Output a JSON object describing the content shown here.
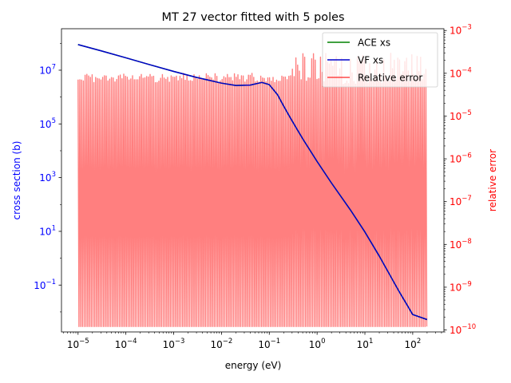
{
  "chart_data": {
    "type": "line",
    "title": "MT 27 vector fitted with 5 poles",
    "xlabel": "energy (eV)",
    "ylabel_left": "cross section (b)",
    "ylabel_right": "relative error",
    "x_scale": "log",
    "y_left_scale": "log",
    "y_right_scale": "log",
    "xlim": [
      4.5e-06,
      450
    ],
    "ylim_left": [
      0.0018,
      350000000.0
    ],
    "ylim_right": [
      9e-11,
      0.0011
    ],
    "grid": false,
    "legend_position": "top-right",
    "x_ticks": [
      {
        "value": 1e-05,
        "base": "10",
        "exp": "−5"
      },
      {
        "value": 0.0001,
        "base": "10",
        "exp": "−4"
      },
      {
        "value": 0.001,
        "base": "10",
        "exp": "−3"
      },
      {
        "value": 0.01,
        "base": "10",
        "exp": "−2"
      },
      {
        "value": 0.1,
        "base": "10",
        "exp": "−1"
      },
      {
        "value": 1,
        "base": "10",
        "exp": "0"
      },
      {
        "value": 10,
        "base": "10",
        "exp": "1"
      },
      {
        "value": 100,
        "base": "10",
        "exp": "2"
      }
    ],
    "y_left_ticks": [
      {
        "value": 0.1,
        "base": "10",
        "exp": "−1"
      },
      {
        "value": 10,
        "base": "10",
        "exp": "1"
      },
      {
        "value": 1000,
        "base": "10",
        "exp": "3"
      },
      {
        "value": 100000,
        "base": "10",
        "exp": "5"
      },
      {
        "value": 10000000,
        "base": "10",
        "exp": "7"
      }
    ],
    "y_right_ticks": [
      {
        "value": 1e-10,
        "base": "10",
        "exp": "−10"
      },
      {
        "value": 1e-09,
        "base": "10",
        "exp": "−9"
      },
      {
        "value": 1e-08,
        "base": "10",
        "exp": "−8"
      },
      {
        "value": 1e-07,
        "base": "10",
        "exp": "−7"
      },
      {
        "value": 1e-06,
        "base": "10",
        "exp": "−6"
      },
      {
        "value": 1e-05,
        "base": "10",
        "exp": "−5"
      },
      {
        "value": 0.0001,
        "base": "10",
        "exp": "−4"
      },
      {
        "value": 0.001,
        "base": "10",
        "exp": "−3"
      }
    ],
    "series": [
      {
        "name": "ACE xs",
        "axis": "left",
        "color": "#008000",
        "x": [
          1e-05,
          3e-05,
          0.0001,
          0.0003,
          0.001,
          0.003,
          0.01,
          0.02,
          0.04,
          0.07,
          0.1,
          0.15,
          0.2,
          0.3,
          0.5,
          1,
          2,
          5,
          10,
          20,
          50,
          100,
          200
        ],
        "y": [
          90000000.0,
          53000000.0,
          29000000.0,
          16500000.0,
          9000000.0,
          5400000.0,
          3300000.0,
          2700000.0,
          2800000.0,
          3500000.0,
          2900000.0,
          1200000.0,
          460000.0,
          130000.0,
          28000.0,
          4000,
          630,
          62,
          9.5,
          1.2,
          0.065,
          0.008,
          0.0052
        ]
      },
      {
        "name": "VF xs",
        "axis": "left",
        "color": "#0000cc",
        "x": [
          1e-05,
          3e-05,
          0.0001,
          0.0003,
          0.001,
          0.003,
          0.01,
          0.02,
          0.04,
          0.07,
          0.1,
          0.15,
          0.2,
          0.3,
          0.5,
          1,
          2,
          5,
          10,
          20,
          50,
          100,
          200
        ],
        "y": [
          90000000.0,
          53000000.0,
          29000000.0,
          16500000.0,
          9000000.0,
          5400000.0,
          3300000.0,
          2700000.0,
          2800000.0,
          3500000.0,
          2900000.0,
          1200000.0,
          460000.0,
          130000.0,
          28000.0,
          4000,
          630,
          62,
          9.5,
          1.2,
          0.065,
          0.008,
          0.0052
        ]
      },
      {
        "name": "Relative error",
        "axis": "right",
        "color": "#ff0000",
        "opacity": 0.5,
        "x_range": [
          1e-05,
          200
        ],
        "envelope_max": 0.0001,
        "envelope_max_high": 0.0003,
        "typical_min": 1e-08,
        "deep_spike_min": 1.2e-10
      }
    ]
  }
}
